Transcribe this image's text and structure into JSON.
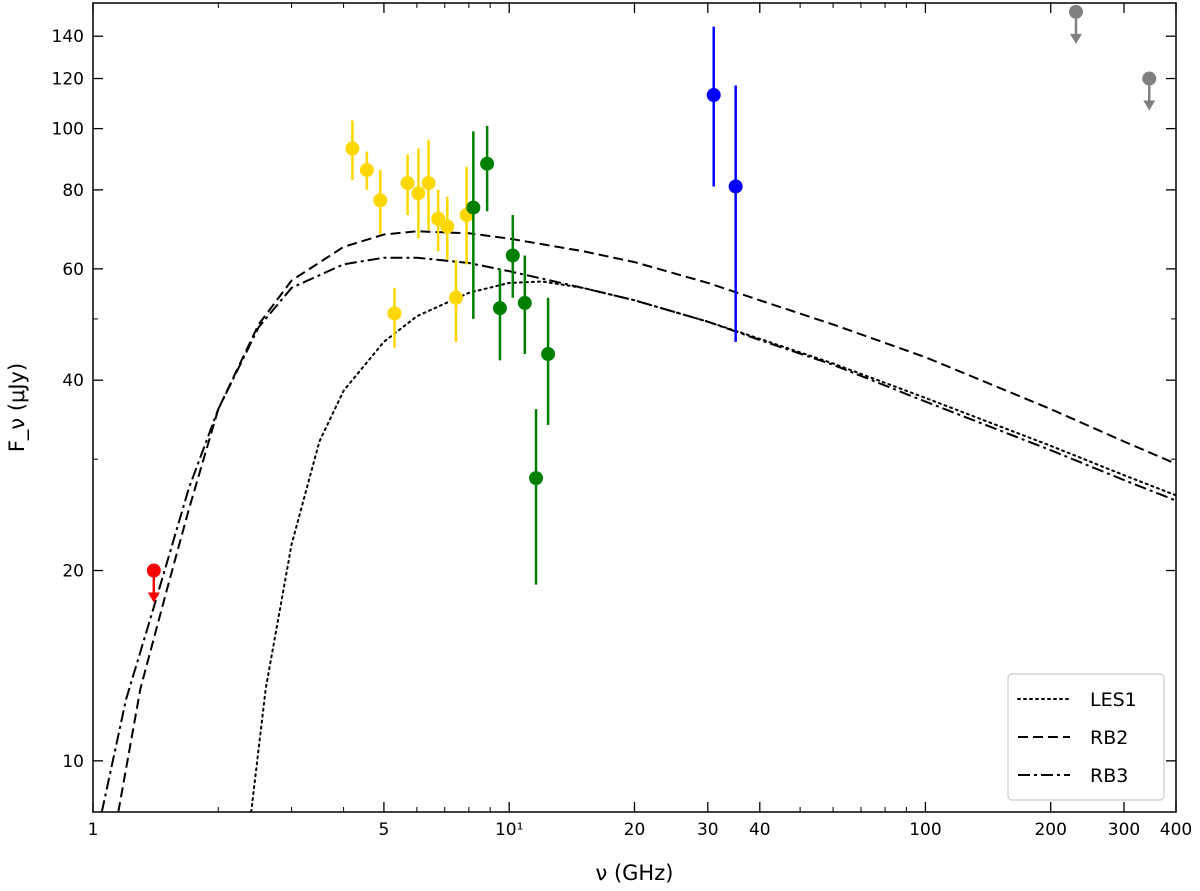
{
  "chart_data": {
    "type": "scatter",
    "title": "",
    "xlabel": "ν (GHz)",
    "ylabel": "F_ν (μJy)",
    "xscale": "log",
    "yscale": "log",
    "xlim": [
      1,
      400
    ],
    "ylim": [
      8.3,
      158
    ],
    "grid": false,
    "legend_position": "bottom-right",
    "x_ticks": [
      {
        "value": 1,
        "label": "1"
      },
      {
        "value": 5,
        "label": "5"
      },
      {
        "value": 10,
        "label": "10¹"
      },
      {
        "value": 20,
        "label": "20"
      },
      {
        "value": 30,
        "label": "30"
      },
      {
        "value": 40,
        "label": "40"
      },
      {
        "value": 100,
        "label": "100"
      },
      {
        "value": 200,
        "label": "200"
      },
      {
        "value": 300,
        "label": "300"
      },
      {
        "value": 400,
        "label": "400"
      }
    ],
    "x_minor_ticks": [
      2,
      3,
      4,
      6,
      7,
      8,
      9,
      50,
      60,
      70,
      80,
      90
    ],
    "y_ticks": [
      {
        "value": 10,
        "label": "10"
      },
      {
        "value": 20,
        "label": "20"
      },
      {
        "value": 40,
        "label": "40"
      },
      {
        "value": 60,
        "label": "60"
      },
      {
        "value": 80,
        "label": "80"
      },
      {
        "value": 100,
        "label": "100"
      },
      {
        "value": 120,
        "label": "120"
      },
      {
        "value": 140,
        "label": "140"
      }
    ],
    "y_minor_ticks": [
      30,
      50
    ],
    "models": [
      {
        "name": "LES1",
        "style": "dotted",
        "color": "#000000",
        "points": [
          [
            2.4,
            8.3
          ],
          [
            2.6,
            13
          ],
          [
            3,
            22
          ],
          [
            3.5,
            32
          ],
          [
            4,
            38.5
          ],
          [
            5,
            46
          ],
          [
            6,
            50.5
          ],
          [
            8,
            55
          ],
          [
            10,
            57
          ],
          [
            12,
            57.3
          ],
          [
            15,
            56
          ],
          [
            20,
            53.5
          ],
          [
            30,
            49.5
          ],
          [
            40,
            46.5
          ],
          [
            60,
            42.5
          ],
          [
            100,
            37.5
          ],
          [
            200,
            31.5
          ],
          [
            300,
            28.3
          ],
          [
            400,
            26.3
          ]
        ]
      },
      {
        "name": "RB2",
        "style": "dashed",
        "color": "#000000",
        "points": [
          [
            1.15,
            8.3
          ],
          [
            1.3,
            13
          ],
          [
            1.5,
            18.5
          ],
          [
            1.7,
            25
          ],
          [
            2,
            36
          ],
          [
            2.5,
            49
          ],
          [
            3,
            57.5
          ],
          [
            4,
            65
          ],
          [
            5,
            68
          ],
          [
            6,
            68.8
          ],
          [
            8,
            68.3
          ],
          [
            10,
            67
          ],
          [
            15,
            64
          ],
          [
            20,
            61.5
          ],
          [
            30,
            57
          ],
          [
            40,
            53.5
          ],
          [
            60,
            49
          ],
          [
            100,
            43.5
          ],
          [
            200,
            36
          ],
          [
            300,
            32
          ],
          [
            400,
            29.5
          ]
        ]
      },
      {
        "name": "RB3",
        "style": "dashdot",
        "color": "#000000",
        "points": [
          [
            1.05,
            8.3
          ],
          [
            1.2,
            12.5
          ],
          [
            1.4,
            17.5
          ],
          [
            1.7,
            27
          ],
          [
            2,
            36
          ],
          [
            2.5,
            48.5
          ],
          [
            3,
            56
          ],
          [
            4,
            61
          ],
          [
            5,
            62.5
          ],
          [
            6,
            62.5
          ],
          [
            8,
            61.3
          ],
          [
            10,
            59.5
          ],
          [
            15,
            56
          ],
          [
            20,
            53.5
          ],
          [
            30,
            49.5
          ],
          [
            40,
            46.3
          ],
          [
            60,
            42.3
          ],
          [
            100,
            37
          ],
          [
            200,
            31
          ],
          [
            300,
            27.8
          ],
          [
            400,
            25.8
          ]
        ]
      }
    ],
    "observation_groups": [
      {
        "color": "#ff0000",
        "points": [
          {
            "x": 1.4,
            "y": 20,
            "upper_limit": true
          }
        ]
      },
      {
        "color": "#ffd700",
        "points": [
          {
            "x": 4.2,
            "y": 93,
            "yerr_low": 10,
            "yerr_high": 10
          },
          {
            "x": 4.55,
            "y": 86,
            "yerr_low": 6,
            "yerr_high": 6
          },
          {
            "x": 4.9,
            "y": 77,
            "yerr_low": 9,
            "yerr_high": 9
          },
          {
            "x": 5.3,
            "y": 51,
            "yerr_low": 6,
            "yerr_high": 5
          },
          {
            "x": 5.7,
            "y": 82,
            "yerr_low": 9,
            "yerr_high": 9
          },
          {
            "x": 6.05,
            "y": 79,
            "yerr_low": 12,
            "yerr_high": 14
          },
          {
            "x": 6.4,
            "y": 82,
            "yerr_low": 13,
            "yerr_high": 14
          },
          {
            "x": 6.75,
            "y": 72,
            "yerr_low": 8,
            "yerr_high": 8
          },
          {
            "x": 7.1,
            "y": 70,
            "yerr_low": 8,
            "yerr_high": 8
          },
          {
            "x": 7.45,
            "y": 54,
            "yerr_low": 8,
            "yerr_high": 8
          },
          {
            "x": 7.9,
            "y": 73,
            "yerr_low": 12,
            "yerr_high": 14
          }
        ]
      },
      {
        "color": "#008000",
        "points": [
          {
            "x": 8.2,
            "y": 75,
            "yerr_low": 25,
            "yerr_high": 24
          },
          {
            "x": 8.85,
            "y": 88,
            "yerr_low": 14,
            "yerr_high": 13
          },
          {
            "x": 9.5,
            "y": 52,
            "yerr_low": 9,
            "yerr_high": 8
          },
          {
            "x": 10.2,
            "y": 63,
            "yerr_low": 9,
            "yerr_high": 10
          },
          {
            "x": 10.9,
            "y": 53,
            "yerr_low": 9,
            "yerr_high": 10
          },
          {
            "x": 11.6,
            "y": 28,
            "yerr_low": 9,
            "yerr_high": 8
          },
          {
            "x": 12.4,
            "y": 44,
            "yerr_low": 10,
            "yerr_high": 10
          }
        ]
      },
      {
        "color": "#0000ff",
        "points": [
          {
            "x": 31,
            "y": 113,
            "yerr_low": 32,
            "yerr_high": 32
          },
          {
            "x": 35,
            "y": 81,
            "yerr_low": 35,
            "yerr_high": 36
          }
        ]
      },
      {
        "color": "#808080",
        "points": [
          {
            "x": 230,
            "y": 153,
            "upper_limit": true
          },
          {
            "x": 345,
            "y": 120,
            "upper_limit": true
          }
        ]
      }
    ]
  }
}
